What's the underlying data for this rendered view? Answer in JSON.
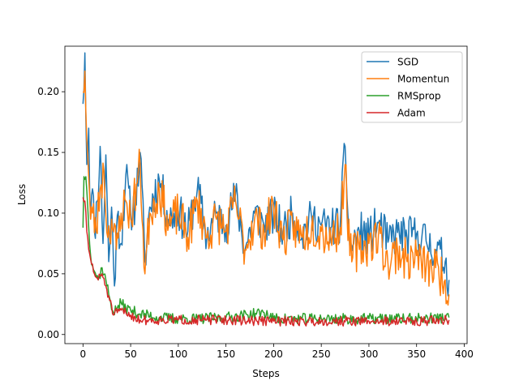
{
  "chart_data": {
    "type": "line",
    "title": "",
    "xlabel": "Steps",
    "ylabel": "Loss",
    "xlim": [
      -19,
      403
    ],
    "ylim": [
      -0.0075,
      0.2375
    ],
    "xticks": [
      0,
      50,
      100,
      150,
      200,
      250,
      300,
      350,
      400
    ],
    "yticks": [
      0.0,
      0.05,
      0.1,
      0.15,
      0.2
    ],
    "ytick_labels": [
      "0.00",
      "0.05",
      "0.10",
      "0.15",
      "0.20"
    ],
    "grid": false,
    "legend_position": "top-right",
    "num_points": 385,
    "series": [
      {
        "name": "SGD",
        "color": "#1f77b4",
        "keypoints": [
          [
            0,
            0.19
          ],
          [
            2,
            0.232
          ],
          [
            4,
            0.14
          ],
          [
            6,
            0.17
          ],
          [
            8,
            0.095
          ],
          [
            10,
            0.12
          ],
          [
            12,
            0.085
          ],
          [
            15,
            0.11
          ],
          [
            18,
            0.155
          ],
          [
            21,
            0.075
          ],
          [
            24,
            0.148
          ],
          [
            27,
            0.06
          ],
          [
            30,
            0.105
          ],
          [
            33,
            0.04
          ],
          [
            36,
            0.098
          ],
          [
            40,
            0.075
          ],
          [
            45,
            0.132
          ],
          [
            50,
            0.1
          ],
          [
            55,
            0.108
          ],
          [
            60,
            0.15
          ],
          [
            65,
            0.06
          ],
          [
            70,
            0.105
          ],
          [
            80,
            0.128
          ],
          [
            90,
            0.095
          ],
          [
            100,
            0.102
          ],
          [
            110,
            0.085
          ],
          [
            120,
            0.12
          ],
          [
            130,
            0.08
          ],
          [
            140,
            0.1
          ],
          [
            150,
            0.09
          ],
          [
            160,
            0.115
          ],
          [
            170,
            0.07
          ],
          [
            180,
            0.1
          ],
          [
            190,
            0.09
          ],
          [
            200,
            0.098
          ],
          [
            210,
            0.085
          ],
          [
            220,
            0.1
          ],
          [
            230,
            0.082
          ],
          [
            240,
            0.096
          ],
          [
            250,
            0.09
          ],
          [
            260,
            0.088
          ],
          [
            270,
            0.092
          ],
          [
            275,
            0.155
          ],
          [
            280,
            0.07
          ],
          [
            290,
            0.085
          ],
          [
            300,
            0.08
          ],
          [
            310,
            0.092
          ],
          [
            320,
            0.076
          ],
          [
            330,
            0.084
          ],
          [
            340,
            0.08
          ],
          [
            350,
            0.083
          ],
          [
            360,
            0.077
          ],
          [
            370,
            0.07
          ],
          [
            380,
            0.06
          ],
          [
            384,
            0.045
          ]
        ],
        "noise": 0.017,
        "seed": 11
      },
      {
        "name": "Momentun",
        "color": "#ff7f0e",
        "keypoints": [
          [
            0,
            0.2
          ],
          [
            2,
            0.217
          ],
          [
            4,
            0.16
          ],
          [
            6,
            0.13
          ],
          [
            8,
            0.095
          ],
          [
            10,
            0.1
          ],
          [
            14,
            0.085
          ],
          [
            18,
            0.12
          ],
          [
            22,
            0.135
          ],
          [
            26,
            0.08
          ],
          [
            30,
            0.095
          ],
          [
            35,
            0.07
          ],
          [
            40,
            0.1
          ],
          [
            45,
            0.11
          ],
          [
            50,
            0.095
          ],
          [
            60,
            0.14
          ],
          [
            65,
            0.05
          ],
          [
            70,
            0.1
          ],
          [
            80,
            0.12
          ],
          [
            90,
            0.09
          ],
          [
            100,
            0.1
          ],
          [
            110,
            0.08
          ],
          [
            120,
            0.11
          ],
          [
            130,
            0.08
          ],
          [
            140,
            0.095
          ],
          [
            150,
            0.085
          ],
          [
            160,
            0.11
          ],
          [
            170,
            0.07
          ],
          [
            180,
            0.095
          ],
          [
            190,
            0.085
          ],
          [
            200,
            0.105
          ],
          [
            210,
            0.078
          ],
          [
            220,
            0.09
          ],
          [
            230,
            0.08
          ],
          [
            240,
            0.09
          ],
          [
            250,
            0.085
          ],
          [
            260,
            0.08
          ],
          [
            270,
            0.088
          ],
          [
            275,
            0.14
          ],
          [
            280,
            0.065
          ],
          [
            290,
            0.07
          ],
          [
            300,
            0.075
          ],
          [
            310,
            0.082
          ],
          [
            320,
            0.058
          ],
          [
            330,
            0.07
          ],
          [
            340,
            0.06
          ],
          [
            350,
            0.065
          ],
          [
            360,
            0.055
          ],
          [
            370,
            0.055
          ],
          [
            380,
            0.045
          ],
          [
            384,
            0.033
          ]
        ],
        "noise": 0.018,
        "seed": 23
      },
      {
        "name": "RMSprop",
        "color": "#2ca02c",
        "keypoints": [
          [
            0,
            0.088
          ],
          [
            1,
            0.13
          ],
          [
            3,
            0.13
          ],
          [
            5,
            0.105
          ],
          [
            8,
            0.065
          ],
          [
            12,
            0.052
          ],
          [
            16,
            0.045
          ],
          [
            20,
            0.055
          ],
          [
            24,
            0.045
          ],
          [
            28,
            0.03
          ],
          [
            32,
            0.018
          ],
          [
            36,
            0.022
          ],
          [
            40,
            0.026
          ],
          [
            45,
            0.022
          ],
          [
            50,
            0.02
          ],
          [
            60,
            0.017
          ],
          [
            80,
            0.014
          ],
          [
            100,
            0.013
          ],
          [
            120,
            0.013
          ],
          [
            150,
            0.014
          ],
          [
            190,
            0.018
          ],
          [
            200,
            0.013
          ],
          [
            250,
            0.013
          ],
          [
            300,
            0.013
          ],
          [
            350,
            0.013
          ],
          [
            384,
            0.014
          ]
        ],
        "noise": 0.0045,
        "seed": 37
      },
      {
        "name": "Adam",
        "color": "#d62728",
        "keypoints": [
          [
            0,
            0.113
          ],
          [
            2,
            0.11
          ],
          [
            4,
            0.085
          ],
          [
            6,
            0.07
          ],
          [
            8,
            0.062
          ],
          [
            12,
            0.05
          ],
          [
            16,
            0.045
          ],
          [
            20,
            0.05
          ],
          [
            24,
            0.04
          ],
          [
            28,
            0.028
          ],
          [
            32,
            0.016
          ],
          [
            36,
            0.018
          ],
          [
            40,
            0.02
          ],
          [
            50,
            0.016
          ],
          [
            60,
            0.012
          ],
          [
            80,
            0.012
          ],
          [
            100,
            0.012
          ],
          [
            150,
            0.012
          ],
          [
            200,
            0.011
          ],
          [
            250,
            0.011
          ],
          [
            300,
            0.011
          ],
          [
            350,
            0.011
          ],
          [
            384,
            0.012
          ]
        ],
        "noise": 0.004,
        "seed": 51
      }
    ]
  }
}
